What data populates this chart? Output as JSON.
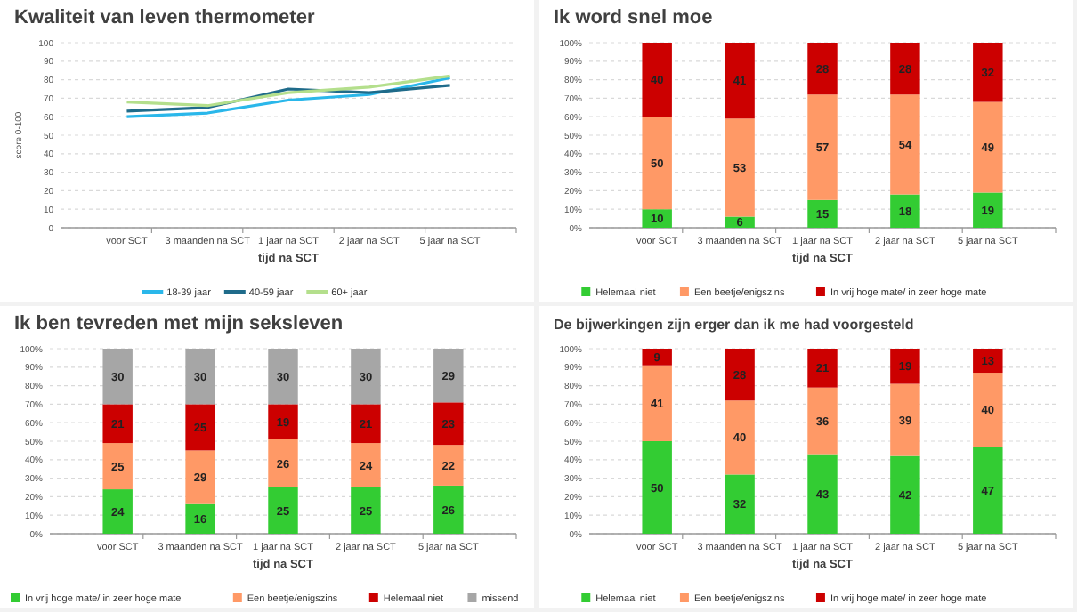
{
  "chart_data": [
    {
      "type": "line",
      "title": "Kwaliteit van leven thermometer",
      "xlabel": "tijd na SCT",
      "ylabel": "score 0-100",
      "categories": [
        "voor SCT",
        "3 maanden na SCT",
        "1 jaar na SCT",
        "2 jaar na SCT",
        "5 jaar na SCT"
      ],
      "ylim": [
        0,
        100
      ],
      "yticks": [
        0,
        10,
        20,
        30,
        40,
        50,
        60,
        70,
        80,
        90,
        100
      ],
      "grid": "y",
      "legend": "bottom",
      "marker": "none",
      "series": [
        {
          "name": "18-39 jaar",
          "color": "#2ab7ea",
          "values": [
            60,
            62,
            69,
            72,
            81
          ]
        },
        {
          "name": "40-59 jaar",
          "color": "#1f6b8a",
          "values": [
            63,
            65,
            75,
            73,
            77
          ]
        },
        {
          "name": "60+ jaar",
          "color": "#b4df8c",
          "values": [
            68,
            66,
            73,
            76,
            82
          ]
        }
      ]
    },
    {
      "type": "bar",
      "stacked": true,
      "title": "Ik word snel moe",
      "xlabel": "tijd na SCT",
      "categories": [
        "voor SCT",
        "3 maanden na SCT",
        "1 jaar na SCT",
        "2 jaar na SCT",
        "5 jaar na SCT"
      ],
      "ylim": [
        0,
        100
      ],
      "yticks": [
        {
          "value": 0,
          "label": "0%"
        },
        {
          "value": 10,
          "label": "10%"
        },
        {
          "value": 20,
          "label": "20%"
        },
        {
          "value": 30,
          "label": "30%"
        },
        {
          "value": 40,
          "label": "40%"
        },
        {
          "value": 50,
          "label": "50%"
        },
        {
          "value": 60,
          "label": "60%"
        },
        {
          "value": 70,
          "label": "70%"
        },
        {
          "value": 80,
          "label": "80%"
        },
        {
          "value": 90,
          "label": "90%"
        },
        {
          "value": 100,
          "label": "100%"
        }
      ],
      "grid": "y",
      "legend": "bottom",
      "data_labels": true,
      "series": [
        {
          "name": "Helemaal niet",
          "color": "#33cc33",
          "values": [
            10,
            6,
            15,
            18,
            19
          ]
        },
        {
          "name": "Een beetje/enigszins",
          "color": "#ff9966",
          "values": [
            50,
            53,
            57,
            54,
            49
          ]
        },
        {
          "name": "In vrij hoge mate/ in zeer hoge mate",
          "color": "#cc0000",
          "values": [
            40,
            41,
            28,
            28,
            32
          ]
        }
      ]
    },
    {
      "type": "bar",
      "stacked": true,
      "title": "Ik ben tevreden met mijn seksleven",
      "xlabel": "tijd na SCT",
      "categories": [
        "voor SCT",
        "3 maanden na SCT",
        "1 jaar na SCT",
        "2 jaar na SCT",
        "5 jaar na SCT"
      ],
      "ylim": [
        0,
        100
      ],
      "yticks": [
        {
          "value": 0,
          "label": "0%"
        },
        {
          "value": 10,
          "label": "10%"
        },
        {
          "value": 20,
          "label": "20%"
        },
        {
          "value": 30,
          "label": "30%"
        },
        {
          "value": 40,
          "label": "40%"
        },
        {
          "value": 50,
          "label": "50%"
        },
        {
          "value": 60,
          "label": "60%"
        },
        {
          "value": 70,
          "label": "70%"
        },
        {
          "value": 80,
          "label": "80%"
        },
        {
          "value": 90,
          "label": "90%"
        },
        {
          "value": 100,
          "label": "100%"
        }
      ],
      "grid": "y",
      "legend": "bottom",
      "data_labels": true,
      "series": [
        {
          "name": "In vrij hoge mate/ in zeer hoge mate",
          "color": "#33cc33",
          "values": [
            24,
            16,
            25,
            25,
            26
          ]
        },
        {
          "name": "Een beetje/enigszins",
          "color": "#ff9966",
          "values": [
            25,
            29,
            26,
            24,
            22
          ]
        },
        {
          "name": "Helemaal niet",
          "color": "#cc0000",
          "values": [
            21,
            25,
            19,
            21,
            23
          ]
        },
        {
          "name": "missend",
          "color": "#a6a6a6",
          "values": [
            30,
            30,
            30,
            30,
            29
          ]
        }
      ]
    },
    {
      "type": "bar",
      "stacked": true,
      "title": "De bijwerkingen zijn erger dan ik me had voorgesteld",
      "xlabel": "tijd na SCT",
      "categories": [
        "voor SCT",
        "3 maanden na SCT",
        "1 jaar na SCT",
        "2 jaar na SCT",
        "5 jaar na SCT"
      ],
      "ylim": [
        0,
        100
      ],
      "yticks": [
        {
          "value": 0,
          "label": "0%"
        },
        {
          "value": 10,
          "label": "10%"
        },
        {
          "value": 20,
          "label": "20%"
        },
        {
          "value": 30,
          "label": "30%"
        },
        {
          "value": 40,
          "label": "40%"
        },
        {
          "value": 50,
          "label": "50%"
        },
        {
          "value": 60,
          "label": "60%"
        },
        {
          "value": 70,
          "label": "70%"
        },
        {
          "value": 80,
          "label": "80%"
        },
        {
          "value": 90,
          "label": "90%"
        },
        {
          "value": 100,
          "label": "100%"
        }
      ],
      "grid": "y",
      "legend": "bottom",
      "data_labels": true,
      "series": [
        {
          "name": "Helemaal niet",
          "color": "#33cc33",
          "values": [
            50,
            32,
            43,
            42,
            47
          ]
        },
        {
          "name": "Een beetje/enigszins",
          "color": "#ff9966",
          "values": [
            41,
            40,
            36,
            39,
            40
          ]
        },
        {
          "name": "In vrij hoge mate/ in zeer hoge mate",
          "color": "#cc0000",
          "values": [
            9,
            28,
            21,
            19,
            13
          ]
        }
      ]
    }
  ]
}
